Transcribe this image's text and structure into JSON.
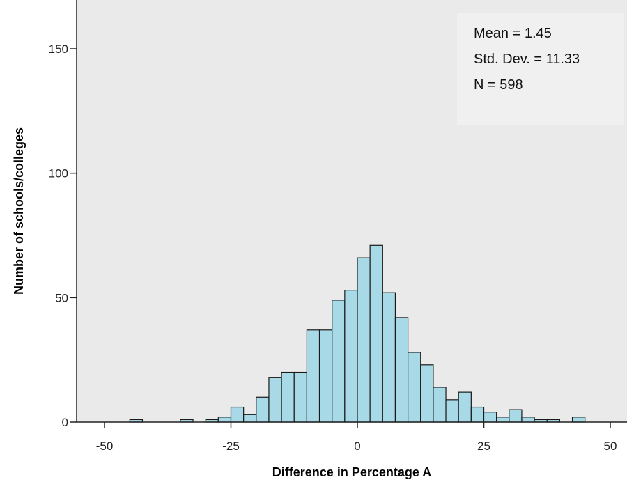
{
  "chart_data": {
    "type": "bar",
    "title": "",
    "xlabel": "Difference in Percentage A",
    "ylabel": "Number of schools/colleges",
    "xlim": [
      -50,
      50
    ],
    "ylim": [
      0,
      160
    ],
    "xticks": [
      "-50",
      "-25",
      "0",
      "25",
      "50"
    ],
    "yticks": [
      "0",
      "50",
      "100",
      "150"
    ],
    "bin_width": 2.5,
    "bins": [
      {
        "start": -45.0,
        "count": 1
      },
      {
        "start": -35.0,
        "count": 1
      },
      {
        "start": -30.0,
        "count": 1
      },
      {
        "start": -27.5,
        "count": 2
      },
      {
        "start": -25.0,
        "count": 6
      },
      {
        "start": -22.5,
        "count": 3
      },
      {
        "start": -20.0,
        "count": 10
      },
      {
        "start": -17.5,
        "count": 18
      },
      {
        "start": -15.0,
        "count": 20
      },
      {
        "start": -12.5,
        "count": 20
      },
      {
        "start": -10.0,
        "count": 37
      },
      {
        "start": -7.5,
        "count": 37
      },
      {
        "start": -5.0,
        "count": 49
      },
      {
        "start": -2.5,
        "count": 53
      },
      {
        "start": 0.0,
        "count": 66
      },
      {
        "start": 2.5,
        "count": 71
      },
      {
        "start": 5.0,
        "count": 52
      },
      {
        "start": 7.5,
        "count": 42
      },
      {
        "start": 10.0,
        "count": 28
      },
      {
        "start": 12.5,
        "count": 23
      },
      {
        "start": 15.0,
        "count": 14
      },
      {
        "start": 17.5,
        "count": 9
      },
      {
        "start": 20.0,
        "count": 12
      },
      {
        "start": 22.5,
        "count": 6
      },
      {
        "start": 25.0,
        "count": 4
      },
      {
        "start": 27.5,
        "count": 2
      },
      {
        "start": 30.0,
        "count": 5
      },
      {
        "start": 32.5,
        "count": 2
      },
      {
        "start": 35.0,
        "count": 1
      },
      {
        "start": 37.5,
        "count": 1
      },
      {
        "start": 42.5,
        "count": 2
      }
    ],
    "stats": {
      "mean": "Mean = 1.45",
      "std_dev": "Std. Dev. = 11.33",
      "n": "N = 598"
    },
    "colors": {
      "plot_background": "#eaeaea",
      "bar_fill": "#a8d9e6",
      "bar_stroke": "#1a1a1a",
      "stats_box": "#f0f0f0"
    },
    "grid": false
  }
}
